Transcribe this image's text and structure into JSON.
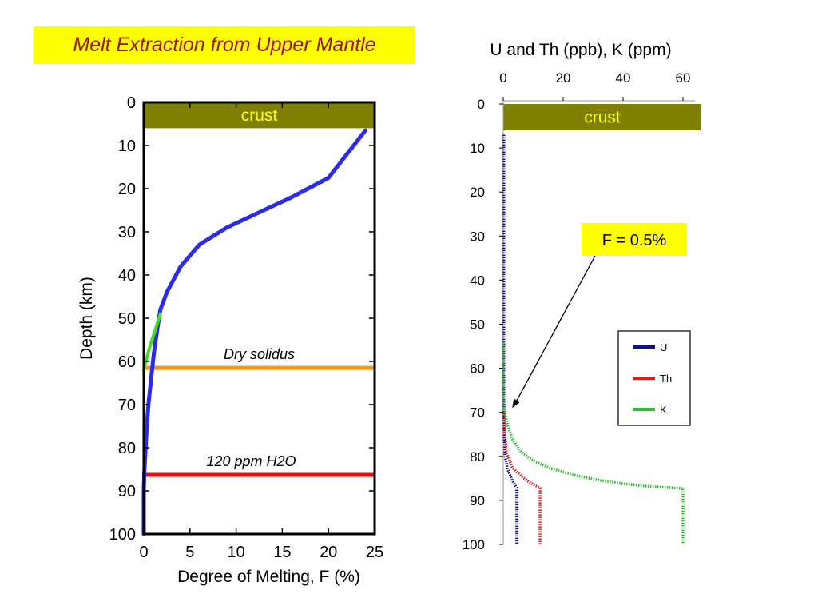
{
  "title": "Melt Extraction from Upper Mantle",
  "chart_data": [
    {
      "type": "line",
      "xlabel": "Degree of Melting, F (%)",
      "ylabel": "Depth (km)",
      "xlim": [
        0,
        25
      ],
      "ylim": [
        0,
        100
      ],
      "y_inverted": true,
      "xticks": [
        0,
        5,
        10,
        15,
        20,
        25
      ],
      "yticks": [
        0,
        10,
        20,
        30,
        40,
        50,
        60,
        70,
        80,
        90,
        100
      ],
      "grid": false,
      "crust": {
        "label": "crust",
        "depth_from": 0,
        "depth_to": 6,
        "color": "#7f7f00"
      },
      "series": [
        {
          "color": "#2b2bea",
          "points": [
            [
              24,
              6.5
            ],
            [
              20,
              17.5
            ],
            [
              16,
              22
            ],
            [
              12,
              26
            ],
            [
              9,
              29
            ],
            [
              6,
              33
            ],
            [
              4,
              38
            ],
            [
              2.5,
              44
            ],
            [
              1.8,
              48
            ],
            [
              1.5,
              52
            ],
            [
              1.1,
              58
            ],
            [
              0.8,
              64
            ],
            [
              0.5,
              70
            ],
            [
              0.3,
              76
            ],
            [
              0.15,
              82
            ],
            [
              0.05,
              86
            ],
            [
              0,
              90
            ],
            [
              0,
              100
            ]
          ]
        },
        {
          "color": "#44dd22",
          "points": [
            [
              1.8,
              49
            ],
            [
              1.2,
              53
            ],
            [
              0.6,
              57
            ],
            [
              0.1,
              61
            ],
            [
              0,
              62
            ]
          ]
        }
      ],
      "hlines": [
        {
          "depth": 61.5,
          "color": "#ef9a1b",
          "label": "Dry solidus"
        },
        {
          "depth": 86.3,
          "color": "#e61010",
          "label": "120 ppm H2O"
        }
      ]
    },
    {
      "type": "line",
      "xlabel": "U and Th (ppb), K (ppm)",
      "ylabel": "",
      "xlim": [
        0,
        65
      ],
      "ylim": [
        0,
        100
      ],
      "y_inverted": true,
      "x_axis_position": "top",
      "xticks": [
        0,
        20,
        40,
        60
      ],
      "yticks": [
        0,
        10,
        20,
        30,
        40,
        50,
        60,
        70,
        80,
        90,
        100
      ],
      "crust": {
        "label": "crust",
        "depth_from": 0,
        "depth_to": 6,
        "color": "#7f7f00"
      },
      "annotation": {
        "text": "F = 0.5%",
        "point_depth": 69,
        "point_x": 3
      },
      "legend_position": "right",
      "series": [
        {
          "name": "U",
          "color": "#101088",
          "points": [
            [
              0.2,
              7
            ],
            [
              0.2,
              70
            ],
            [
              0.3,
              76
            ],
            [
              0.6,
              80
            ],
            [
              1.5,
              83
            ],
            [
              3,
              85.5
            ],
            [
              4.5,
              87.2
            ],
            [
              4.5,
              100
            ]
          ]
        },
        {
          "name": "Th",
          "color": "#dd1a1a",
          "points": [
            [
              0.2,
              70
            ],
            [
              0.4,
              74
            ],
            [
              1,
              79
            ],
            [
              3,
              82.5
            ],
            [
              6,
              84.5
            ],
            [
              9,
              86
            ],
            [
              12.3,
              87.2
            ],
            [
              12.3,
              100
            ]
          ]
        },
        {
          "name": "K",
          "color": "#33bb33",
          "points": [
            [
              0,
              54
            ],
            [
              0,
              66
            ],
            [
              0.5,
              70
            ],
            [
              1.5,
              73
            ],
            [
              3,
              76
            ],
            [
              6,
              79
            ],
            [
              10,
              81
            ],
            [
              16,
              82.8
            ],
            [
              24,
              84.3
            ],
            [
              32,
              85.4
            ],
            [
              40,
              86.2
            ],
            [
              48,
              86.8
            ],
            [
              55,
              87.1
            ],
            [
              60,
              87.3
            ],
            [
              60,
              100
            ]
          ]
        }
      ]
    }
  ]
}
